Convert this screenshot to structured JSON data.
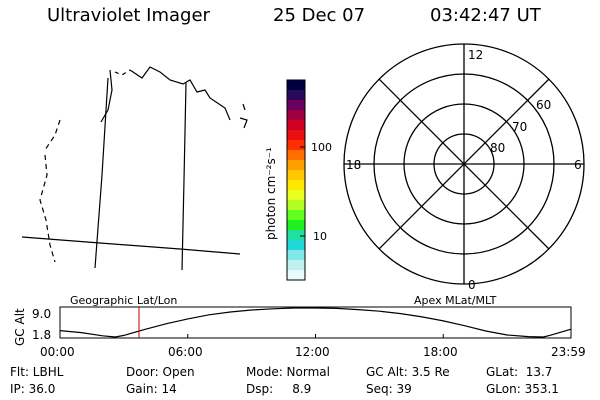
{
  "header": {
    "instrument": "Ultraviolet Imager",
    "date": "25 Dec 07",
    "time": "03:42:47 UT"
  },
  "colorbar": {
    "label": "photon cm⁻²s⁻¹",
    "ticks": [
      "100",
      "10"
    ],
    "colors": [
      "#000040",
      "#2a0a58",
      "#6a0060",
      "#a00040",
      "#d00020",
      "#e81010",
      "#ff3000",
      "#ff7000",
      "#ffa000",
      "#ffc800",
      "#ffe800",
      "#e8ff20",
      "#b0ff20",
      "#60ff20",
      "#20f020",
      "#20e0a0",
      "#20d8d8",
      "#80e8e8",
      "#c0f0f0",
      "#e8fafa"
    ]
  },
  "polar": {
    "mlt_labels": [
      "12",
      "18",
      "6",
      "0"
    ],
    "lat_labels": [
      "60",
      "70",
      "80"
    ]
  },
  "panel": {
    "left_label": "Geographic Lat/Lon",
    "right_label": "Apex MLat/MLT",
    "yaxis_label": "GC Alt",
    "ytick_top": "9.0",
    "ytick_bottom": "1.8",
    "xticks": [
      "00:00",
      "06:00",
      "12:00",
      "18:00",
      "23:59"
    ],
    "marker_color": "#c00000"
  },
  "chart_data": {
    "type": "line",
    "title": "",
    "xlabel": "",
    "ylabel": "GC Alt",
    "xlim": [
      0,
      24
    ],
    "ylim": [
      1.8,
      9.0
    ],
    "x": [
      0,
      1,
      2,
      2.6,
      3,
      4,
      5,
      6,
      7,
      8,
      9,
      10,
      11,
      12,
      13,
      14,
      15,
      16,
      17,
      18,
      19,
      20,
      21,
      22,
      22.7,
      23,
      23.98
    ],
    "series": [
      {
        "values": [
          3.4,
          2.9,
          2.1,
          1.8,
          2.2,
          3.7,
          5.1,
          6.3,
          7.3,
          8.0,
          8.5,
          8.8,
          9.0,
          9.0,
          8.9,
          8.6,
          8.2,
          7.6,
          6.8,
          5.8,
          4.6,
          3.3,
          2.3,
          1.9,
          1.8,
          2.2,
          3.7
        ]
      }
    ],
    "marker_x": 3.71
  },
  "status": {
    "flt": "Flt: LBHL",
    "ip": "IP: 36.0",
    "door": "Door: Open",
    "gain": "Gain: 14",
    "mode": "Mode: Normal",
    "dsp": "Dsp:     8.9",
    "gcalt": "GC Alt: 3.5 Re",
    "seq": "Seq: 39",
    "glat": "GLat:  13.7",
    "glon": "GLon: 353.1"
  }
}
